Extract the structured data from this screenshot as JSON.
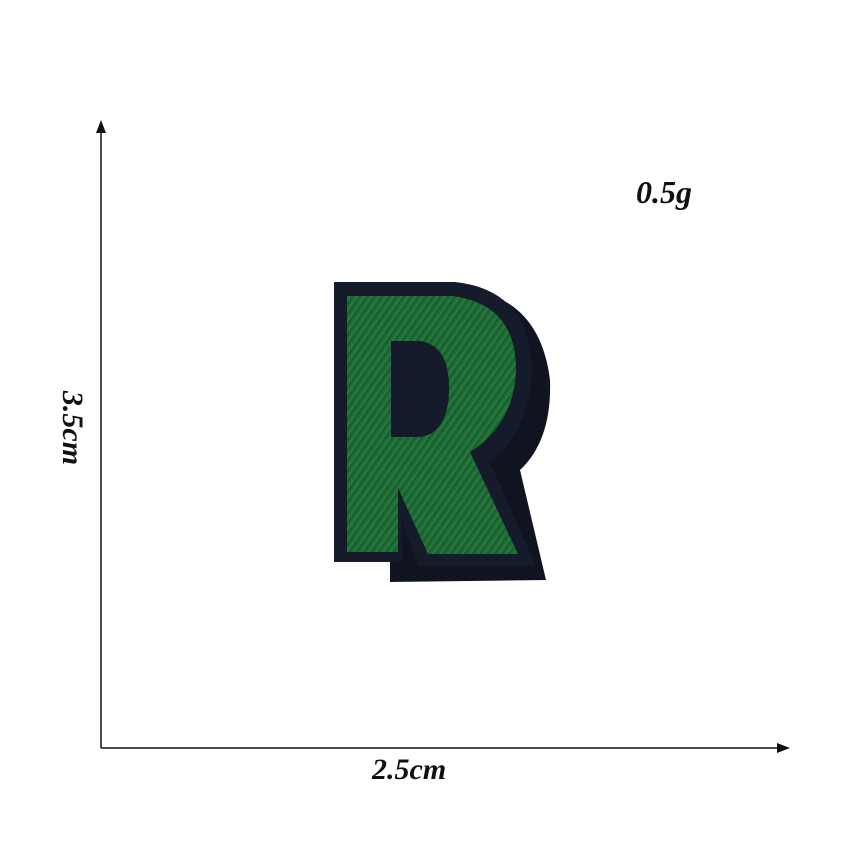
{
  "product": {
    "name": "letter-r-embroidered-patch",
    "letter": "R",
    "thread_color": "#1f6b35",
    "border_color": "#151b2a",
    "shadow_color": "#0f1420"
  },
  "dimensions": {
    "weight": "0.5g",
    "width": "2.5cm",
    "height": "3.5cm"
  },
  "colors": {
    "background": "#ffffff",
    "axis": "#111111"
  }
}
